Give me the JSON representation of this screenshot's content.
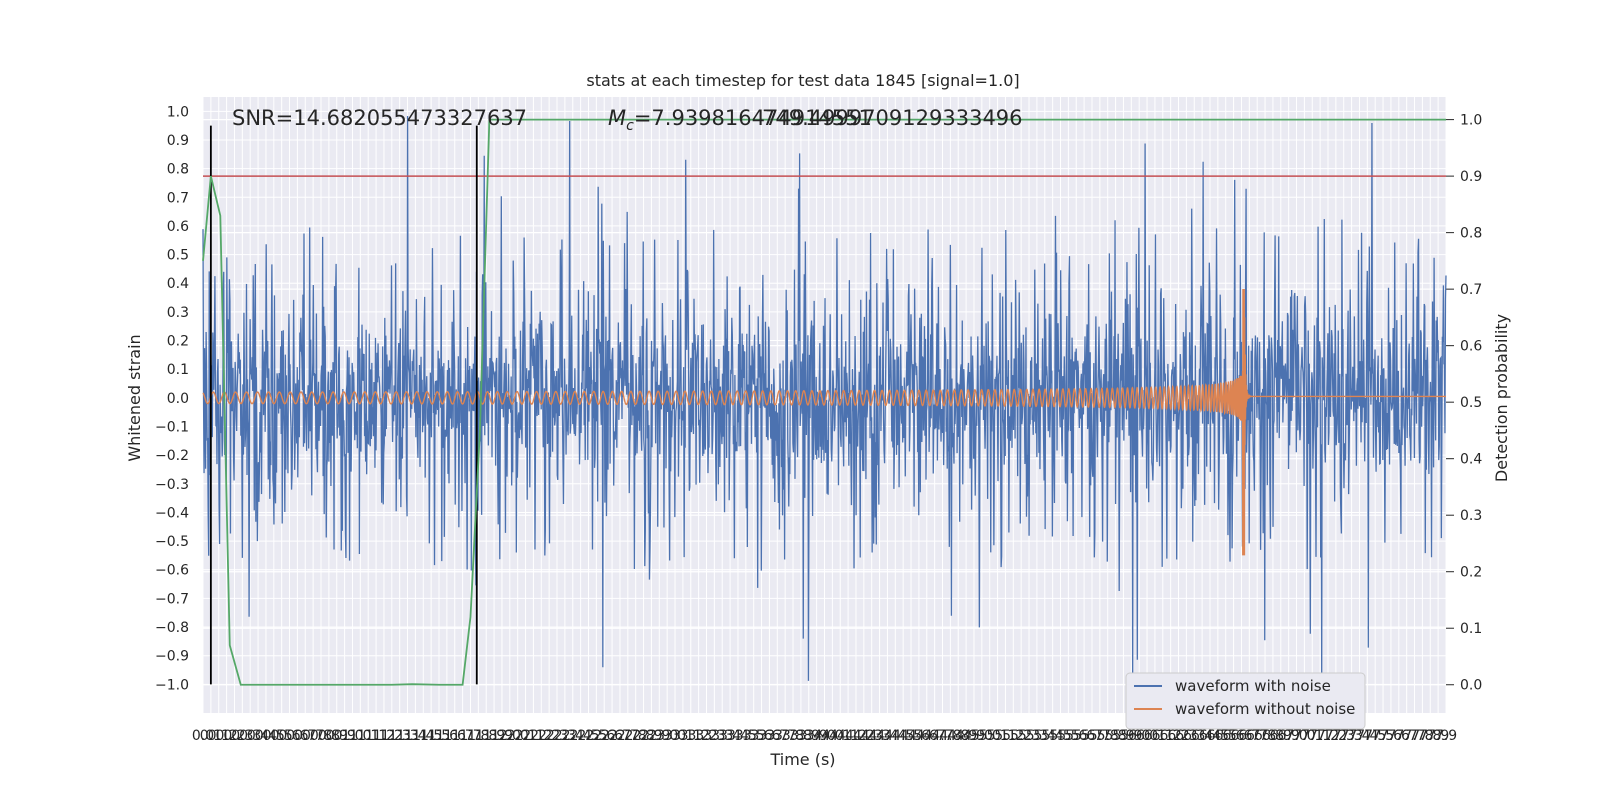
{
  "chart_data": {
    "type": "line",
    "title": "stats at each timestep for test data 1845 [signal=1.0]",
    "xlabel": "Time (s)",
    "ylabel": "Whitened strain",
    "ylabel_right": "Detection probability",
    "xlim": [
      0.0,
      7.9
    ],
    "ylim": [
      -1.1,
      1.05
    ],
    "ylim_right": [
      -0.05,
      1.04
    ],
    "x_tick_start": 0.0,
    "x_tick_step": 0.05,
    "x_tick_count": 159,
    "y_ticks": [
      1.0,
      0.9,
      0.8,
      0.7,
      0.6,
      0.5,
      0.4,
      0.3,
      0.2,
      0.1,
      0.0,
      -0.1,
      -0.2,
      -0.3,
      -0.4,
      -0.5,
      -0.6,
      -0.7,
      -0.8,
      -0.9,
      -1.0
    ],
    "y_tick_labels": [
      "1.0",
      "0.9",
      "0.8",
      "0.7",
      "0.6",
      "0.5",
      "0.4",
      "0.3",
      "0.2",
      "0.1",
      "0.0",
      "−0.1",
      "−0.2",
      "−0.3",
      "−0.4",
      "−0.5",
      "−0.6",
      "−0.7",
      "−0.8",
      "−0.9",
      "−1.0"
    ],
    "y_right_ticks": [
      1.0,
      0.9,
      0.8,
      0.7,
      0.6,
      0.5,
      0.4,
      0.3,
      0.2,
      0.1,
      0.0
    ],
    "y_right_tick_labels": [
      "1.0",
      "0.9",
      "0.8",
      "0.7",
      "0.6",
      "0.5",
      "0.4",
      "0.3",
      "0.2",
      "0.1",
      "0.0"
    ],
    "annotations": {
      "snr": "SNR=14.682055473327637",
      "mc_prefix": "M",
      "mc_sub": "c",
      "mc_value": "=7.939816474914551",
      "mc_overlap": "749.4999709129333496"
    },
    "legend": {
      "placement": "lower-right",
      "entries": [
        {
          "label": "waveform with noise",
          "color": "#4c72b0"
        },
        {
          "label": "waveform without noise",
          "color": "#dd8452"
        }
      ]
    },
    "colors": {
      "background": "#eaeaf2",
      "grid": "#ffffff",
      "noise": "#4c72b0",
      "signal": "#dd8452",
      "probability": "#55a868",
      "threshold": "#c44e52",
      "marker": "#000000"
    },
    "threshold_right": 0.9,
    "vertical_markers": [
      0.05,
      1.74
    ],
    "noise_envelope": {
      "typical_max": 0.45,
      "peak_max": 1.0,
      "typical_min": -0.5,
      "peak_min": -1.0
    },
    "signal": {
      "start_amplitude": 0.02,
      "peak_time": 6.62,
      "peak_positive": 0.38,
      "peak_negative": -0.55,
      "post_merger_offset": 0.005
    },
    "probability_series": {
      "x": [
        0.0,
        0.05,
        0.11,
        0.17,
        0.24,
        0.6,
        1.2,
        1.33,
        1.5,
        1.65,
        1.7,
        1.76,
        1.82,
        2.5,
        5.0,
        7.9
      ],
      "y": [
        0.75,
        0.9,
        0.83,
        0.07,
        0.0,
        0.0,
        0.0,
        0.001,
        0.0,
        0.0,
        0.12,
        0.45,
        1.0,
        1.0,
        1.0,
        1.0
      ]
    }
  }
}
